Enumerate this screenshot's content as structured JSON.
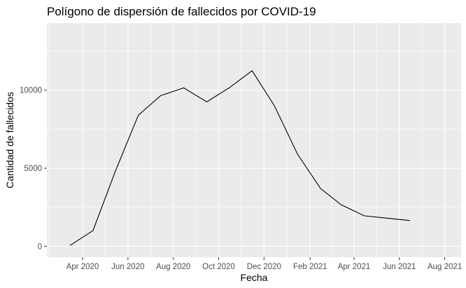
{
  "chart_data": {
    "type": "line",
    "title": "Polígono de dispersión de fallecidos por COVID-19",
    "xlabel": "Fecha",
    "ylabel": "Cantidad de fallecidos",
    "x_tick_labels": [
      "Apr 2020",
      "Jun 2020",
      "Aug 2020",
      "Oct 2020",
      "Dec 2020",
      "Feb 2021",
      "Apr 2021",
      "Jun 2021",
      "Aug 2021"
    ],
    "y_ticks": [
      0,
      5000,
      10000
    ],
    "xlim": [
      "2020-02-13",
      "2021-08-23"
    ],
    "ylim": [
      -700,
      14300
    ],
    "grid": true,
    "background": "#ebebeb",
    "grid_color": "#ffffff",
    "line_color": "#000000",
    "series": [
      {
        "points": [
          {
            "x": "2020-03-15",
            "y": 50
          },
          {
            "x": "2020-04-15",
            "y": 1000
          },
          {
            "x": "2020-05-15",
            "y": 4800
          },
          {
            "x": "2020-06-15",
            "y": 8400
          },
          {
            "x": "2020-06-15",
            "y": 8400
          },
          {
            "x": "2020-07-15",
            "y": 9650
          },
          {
            "x": "2020-08-15",
            "y": 10150
          },
          {
            "x": "2020-09-15",
            "y": 9250
          },
          {
            "x": "2020-10-15",
            "y": 10150
          },
          {
            "x": "2020-11-15",
            "y": 11250
          },
          {
            "x": "2020-12-15",
            "y": 9000
          },
          {
            "x": "2021-01-15",
            "y": 5900
          },
          {
            "x": "2021-02-15",
            "y": 3700
          },
          {
            "x": "2021-03-15",
            "y": 2650
          },
          {
            "x": "2021-04-15",
            "y": 1950
          },
          {
            "x": "2021-05-15",
            "y": 1800
          },
          {
            "x": "2021-06-15",
            "y": 1650
          }
        ]
      }
    ]
  }
}
